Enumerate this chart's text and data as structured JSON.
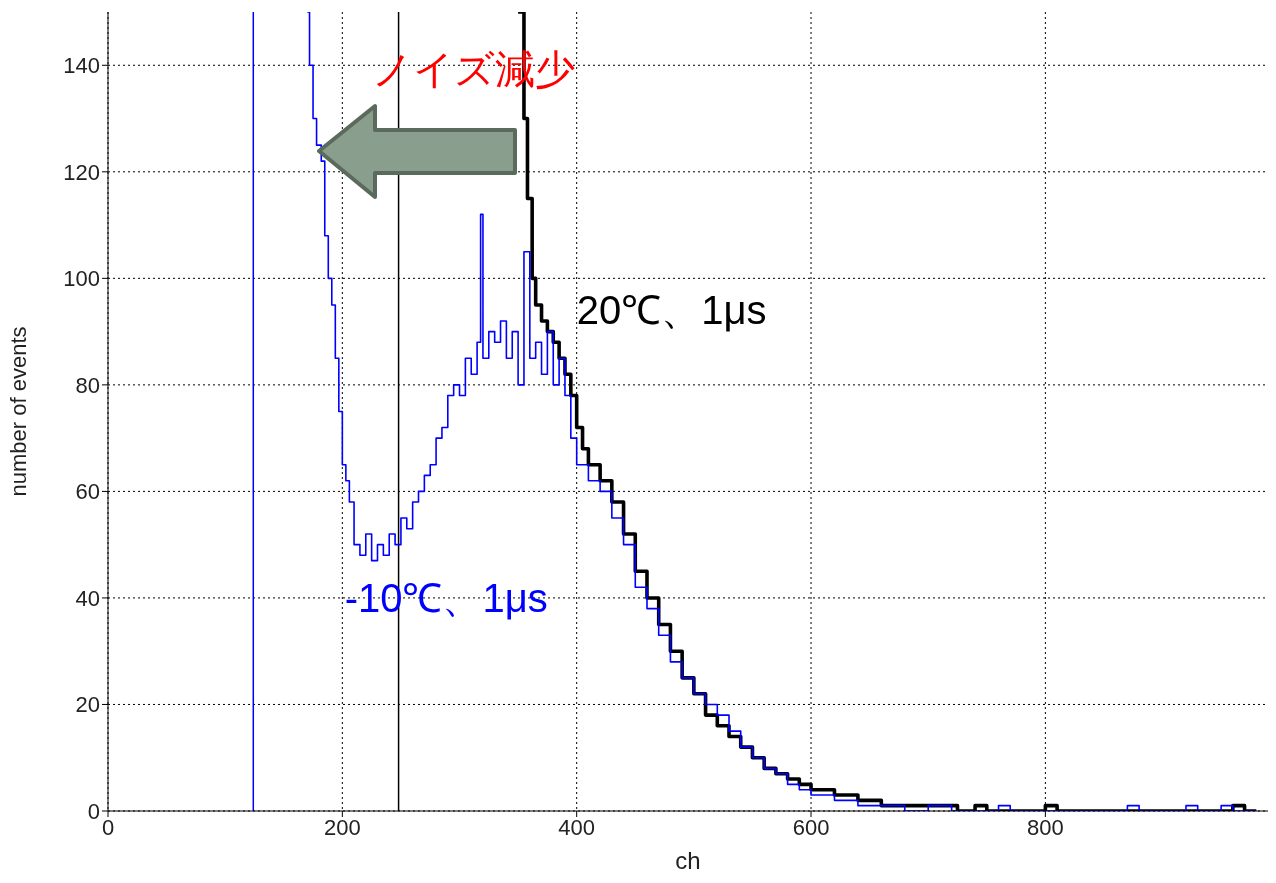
{
  "chart_data": {
    "type": "step",
    "xlabel": "ch",
    "ylabel": "number of events",
    "xlim": [
      0,
      990
    ],
    "ylim": [
      0,
      150
    ],
    "xticks": [
      0,
      200,
      400,
      600,
      800
    ],
    "yticks": [
      0,
      20,
      40,
      60,
      80,
      100,
      120,
      140
    ],
    "grid": true,
    "line_style": "solid",
    "marker": "none",
    "annotations": [
      "ノイズ減少"
    ],
    "ref_lines": [
      {
        "axis": "x",
        "value": 124,
        "color": "#0000ff"
      },
      {
        "axis": "x",
        "value": 248,
        "color": "#000000"
      }
    ],
    "series": [
      {
        "name": "-10℃、1μs",
        "color": "#0000ff",
        "x": [
          170,
          172,
          175,
          178,
          182,
          185,
          188,
          191,
          194,
          197,
          200,
          203,
          206,
          210,
          215,
          220,
          225,
          230,
          235,
          240,
          245,
          250,
          255,
          260,
          265,
          270,
          275,
          280,
          285,
          290,
          295,
          300,
          305,
          310,
          315,
          318,
          320,
          325,
          330,
          335,
          340,
          345,
          350,
          355,
          360,
          365,
          370,
          375,
          380,
          385,
          390,
          395,
          400,
          410,
          420,
          430,
          440,
          450,
          460,
          470,
          480,
          490,
          500,
          510,
          520,
          530,
          540,
          550,
          560,
          570,
          580,
          590,
          600,
          620,
          640,
          660,
          680,
          700,
          720,
          760,
          770,
          870,
          880,
          920,
          930,
          950,
          960,
          980
        ],
        "values": [
          150,
          140,
          130,
          125,
          122,
          108,
          100,
          95,
          85,
          75,
          65,
          62,
          58,
          50,
          48,
          52,
          47,
          50,
          48,
          52,
          50,
          55,
          53,
          58,
          60,
          63,
          65,
          70,
          72,
          78,
          80,
          78,
          85,
          82,
          88,
          112,
          85,
          90,
          88,
          92,
          85,
          90,
          80,
          105,
          85,
          88,
          82,
          90,
          80,
          85,
          78,
          70,
          65,
          62,
          60,
          55,
          50,
          42,
          38,
          33,
          28,
          25,
          22,
          20,
          18,
          15,
          12,
          10,
          8,
          7,
          5,
          4,
          3,
          2,
          1,
          1,
          0,
          1,
          0,
          1,
          0,
          1,
          0,
          1,
          0,
          1,
          0,
          0
        ]
      },
      {
        "name": "20℃、1μs",
        "color": "#000000",
        "x": [
          350,
          355,
          358,
          362,
          365,
          370,
          375,
          380,
          385,
          390,
          395,
          400,
          405,
          410,
          420,
          430,
          440,
          450,
          460,
          470,
          480,
          490,
          500,
          510,
          520,
          530,
          540,
          550,
          560,
          570,
          580,
          590,
          600,
          620,
          640,
          660,
          680,
          700,
          725,
          740,
          750,
          800,
          810,
          960,
          970,
          980
        ],
        "values": [
          150,
          130,
          115,
          100,
          95,
          92,
          90,
          88,
          85,
          82,
          78,
          72,
          68,
          65,
          62,
          58,
          52,
          45,
          40,
          35,
          30,
          25,
          22,
          18,
          16,
          14,
          12,
          10,
          8,
          7,
          6,
          5,
          4,
          3,
          2,
          1,
          1,
          1,
          0,
          1,
          0,
          1,
          0,
          1,
          0,
          0
        ]
      }
    ]
  }
}
